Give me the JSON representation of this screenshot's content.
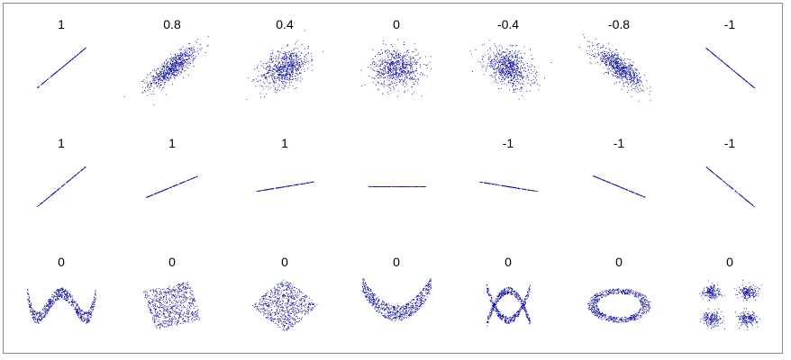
{
  "point_color": "#0a0aa0",
  "chart_data": [
    {
      "type": "scatter",
      "title": "1",
      "pattern": "linear",
      "slope": 1
    },
    {
      "type": "scatter",
      "title": "0.8",
      "pattern": "correlated",
      "r": 0.8
    },
    {
      "type": "scatter",
      "title": "0.4",
      "pattern": "correlated",
      "r": 0.4
    },
    {
      "type": "scatter",
      "title": "0",
      "pattern": "correlated",
      "r": 0
    },
    {
      "type": "scatter",
      "title": "-0.4",
      "pattern": "correlated",
      "r": -0.4
    },
    {
      "type": "scatter",
      "title": "-0.8",
      "pattern": "correlated",
      "r": -0.8
    },
    {
      "type": "scatter",
      "title": "-1",
      "pattern": "linear",
      "slope": -1
    },
    {
      "type": "scatter",
      "title": "1",
      "pattern": "linear",
      "slope": 1
    },
    {
      "type": "scatter",
      "title": "1",
      "pattern": "linear",
      "slope": 0.5
    },
    {
      "type": "scatter",
      "title": "1",
      "pattern": "linear",
      "slope": 0.2
    },
    {
      "type": "scatter",
      "title": "",
      "pattern": "linear",
      "slope": 0
    },
    {
      "type": "scatter",
      "title": "-1",
      "pattern": "linear",
      "slope": -0.2
    },
    {
      "type": "scatter",
      "title": "-1",
      "pattern": "linear",
      "slope": -0.5
    },
    {
      "type": "scatter",
      "title": "-1",
      "pattern": "linear",
      "slope": -1
    },
    {
      "type": "scatter",
      "title": "0",
      "pattern": "w-shape"
    },
    {
      "type": "scatter",
      "title": "0",
      "pattern": "rotated-square",
      "angle": 15
    },
    {
      "type": "scatter",
      "title": "0",
      "pattern": "rotated-square",
      "angle": 45
    },
    {
      "type": "scatter",
      "title": "0",
      "pattern": "parabola"
    },
    {
      "type": "scatter",
      "title": "0",
      "pattern": "cross"
    },
    {
      "type": "scatter",
      "title": "0",
      "pattern": "ring"
    },
    {
      "type": "scatter",
      "title": "0",
      "pattern": "four-clusters"
    }
  ]
}
